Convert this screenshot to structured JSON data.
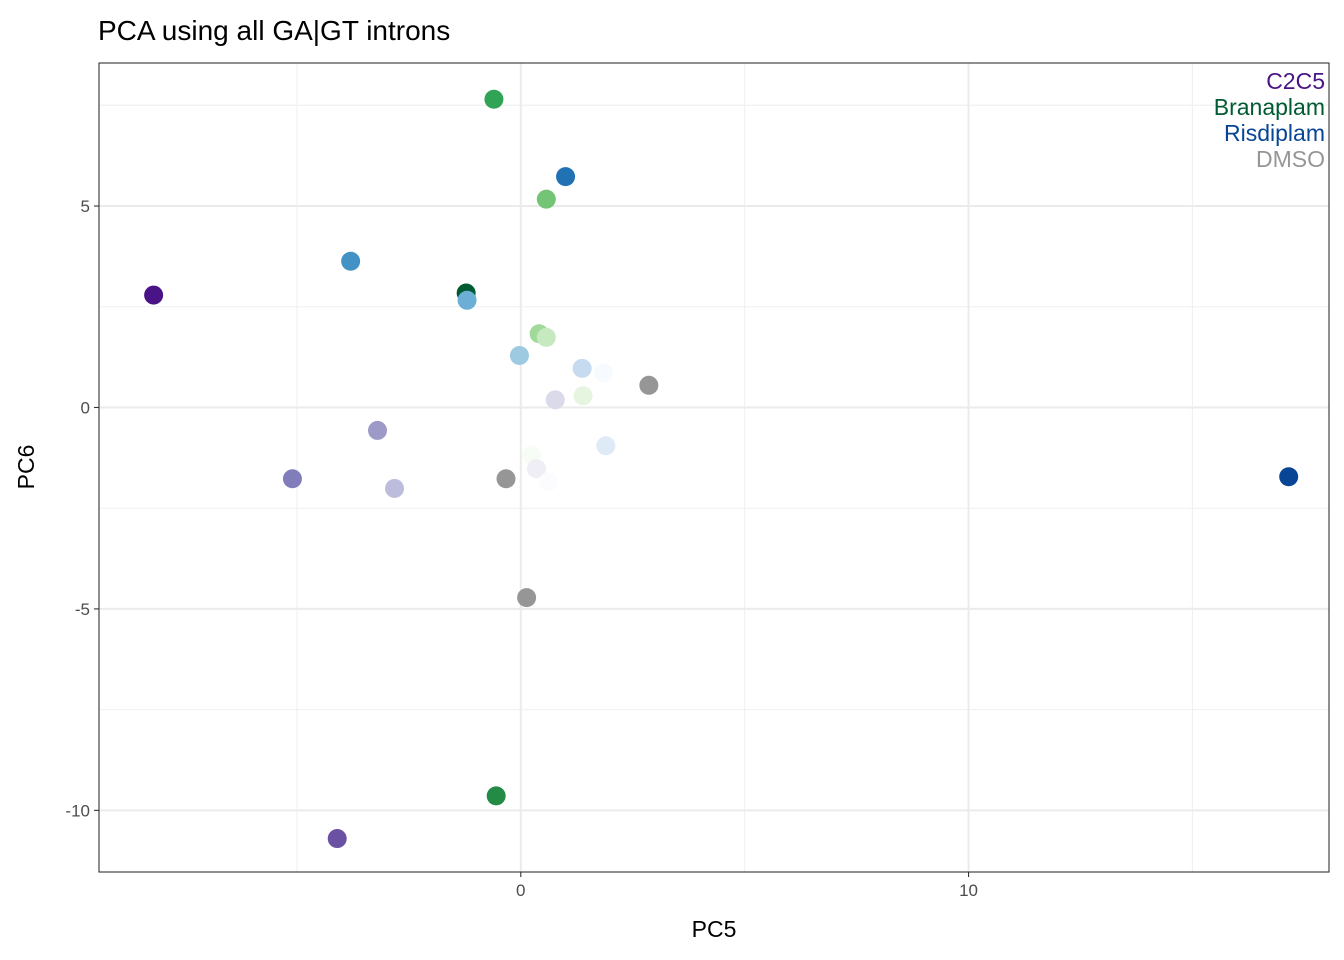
{
  "chart_data": {
    "type": "scatter",
    "title": "PCA using all GA|GT introns",
    "xlabel": "PC5",
    "ylabel": "PC6",
    "xlim": [
      -9.42,
      18.05
    ],
    "ylim": [
      -11.53,
      8.55
    ],
    "x_ticks": [
      0,
      10
    ],
    "x_tick_labels": [
      "0",
      "10"
    ],
    "y_ticks": [
      -10,
      -5,
      0,
      5
    ],
    "y_tick_labels": [
      "-10",
      "-5",
      "0",
      "5"
    ],
    "grid": true,
    "legend_position": "top-right",
    "legend": [
      {
        "label": "C2C5",
        "color": "#4a1486"
      },
      {
        "label": "Branaplam",
        "color": "#005a32"
      },
      {
        "label": "Risdiplam",
        "color": "#084594"
      },
      {
        "label": "DMSO",
        "color": "#969696"
      }
    ],
    "points": [
      {
        "x": -0.6,
        "y": 7.65,
        "color": "#31a354"
      },
      {
        "x": 1.0,
        "y": 5.73,
        "color": "#2171b5"
      },
      {
        "x": 0.57,
        "y": 5.17,
        "color": "#74c476"
      },
      {
        "x": -3.8,
        "y": 3.63,
        "color": "#4292c6"
      },
      {
        "x": -8.2,
        "y": 2.79,
        "color": "#4a1486"
      },
      {
        "x": -1.22,
        "y": 2.84,
        "color": "#005a32"
      },
      {
        "x": -1.2,
        "y": 2.66,
        "color": "#6baed6"
      },
      {
        "x": 0.41,
        "y": 1.83,
        "color": "#a1d99b"
      },
      {
        "x": 0.57,
        "y": 1.74,
        "color": "#c7e9c0"
      },
      {
        "x": -0.03,
        "y": 1.29,
        "color": "#9ecae1"
      },
      {
        "x": 1.37,
        "y": 0.97,
        "color": "#c6dbef"
      },
      {
        "x": 1.85,
        "y": 0.86,
        "color": "#f7fbff"
      },
      {
        "x": 2.86,
        "y": 0.55,
        "color": "#969696"
      },
      {
        "x": 1.39,
        "y": 0.29,
        "color": "#e5f5e0"
      },
      {
        "x": 0.77,
        "y": 0.19,
        "color": "#dadaeb"
      },
      {
        "x": -3.2,
        "y": -0.57,
        "color": "#9e9ac8"
      },
      {
        "x": 1.9,
        "y": -0.95,
        "color": "#deebf7"
      },
      {
        "x": 0.24,
        "y": -1.18,
        "color": "#f7fcf5"
      },
      {
        "x": 0.35,
        "y": -1.52,
        "color": "#efedf5"
      },
      {
        "x": -5.1,
        "y": -1.77,
        "color": "#807dba"
      },
      {
        "x": -0.33,
        "y": -1.77,
        "color": "#969696"
      },
      {
        "x": 0.62,
        "y": -1.84,
        "color": "#fcfbfd"
      },
      {
        "x": 17.15,
        "y": -1.72,
        "color": "#084594"
      },
      {
        "x": -2.82,
        "y": -2.01,
        "color": "#bcbddc"
      },
      {
        "x": 0.13,
        "y": -4.72,
        "color": "#969696"
      },
      {
        "x": -0.55,
        "y": -9.64,
        "color": "#238b45"
      },
      {
        "x": -4.1,
        "y": -10.7,
        "color": "#6a51a3"
      }
    ]
  }
}
